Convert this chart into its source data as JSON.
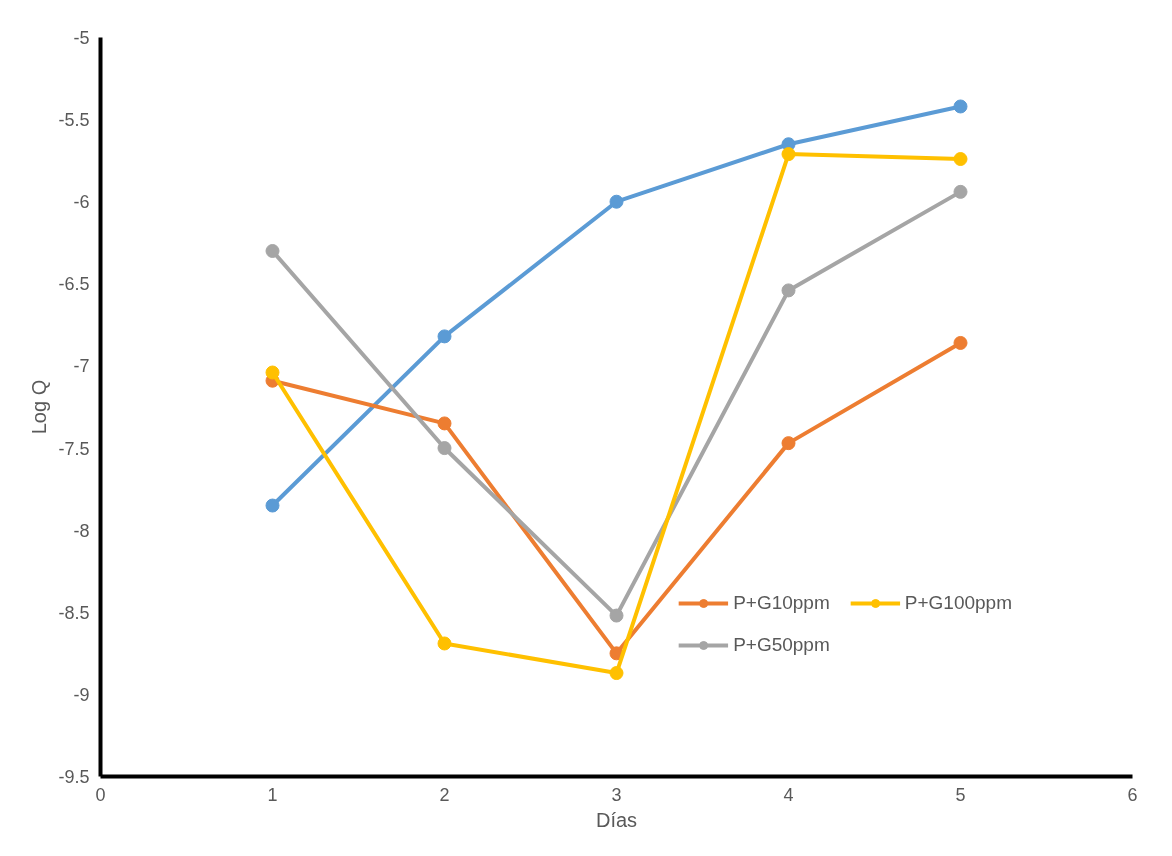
{
  "chart_data": {
    "type": "line",
    "xlabel": "Días",
    "ylabel": "Log Q",
    "x": [
      1,
      2,
      3,
      4,
      5
    ],
    "xlim": [
      0,
      6
    ],
    "xticks": [
      0,
      1,
      2,
      3,
      4,
      5,
      6
    ],
    "ylim": [
      -9.5,
      -5
    ],
    "yticks": [
      -9.5,
      -9,
      -8.5,
      -8,
      -7.5,
      -7,
      -6.5,
      -6,
      -5.5,
      -5
    ],
    "grid": false,
    "legend": "bottom right",
    "marker": "circle",
    "line_style": "solid",
    "series": [
      {
        "color": "#5b9bd5",
        "values": [
          -7.85,
          -6.82,
          -6.0,
          -5.65,
          -5.42
        ]
      },
      {
        "name": "P+G10ppm",
        "color": "#ed7d31",
        "values": [
          -7.09,
          -7.35,
          -8.75,
          -7.47,
          -6.86
        ]
      },
      {
        "name": "P+G50ppm",
        "color": "#a5a5a5",
        "values": [
          -6.3,
          -7.5,
          -8.52,
          -6.54,
          -5.94
        ]
      },
      {
        "name": "P+G100ppm",
        "color": "#ffc000",
        "values": [
          -7.04,
          -8.69,
          -8.87,
          -5.71,
          -5.74
        ]
      }
    ]
  }
}
